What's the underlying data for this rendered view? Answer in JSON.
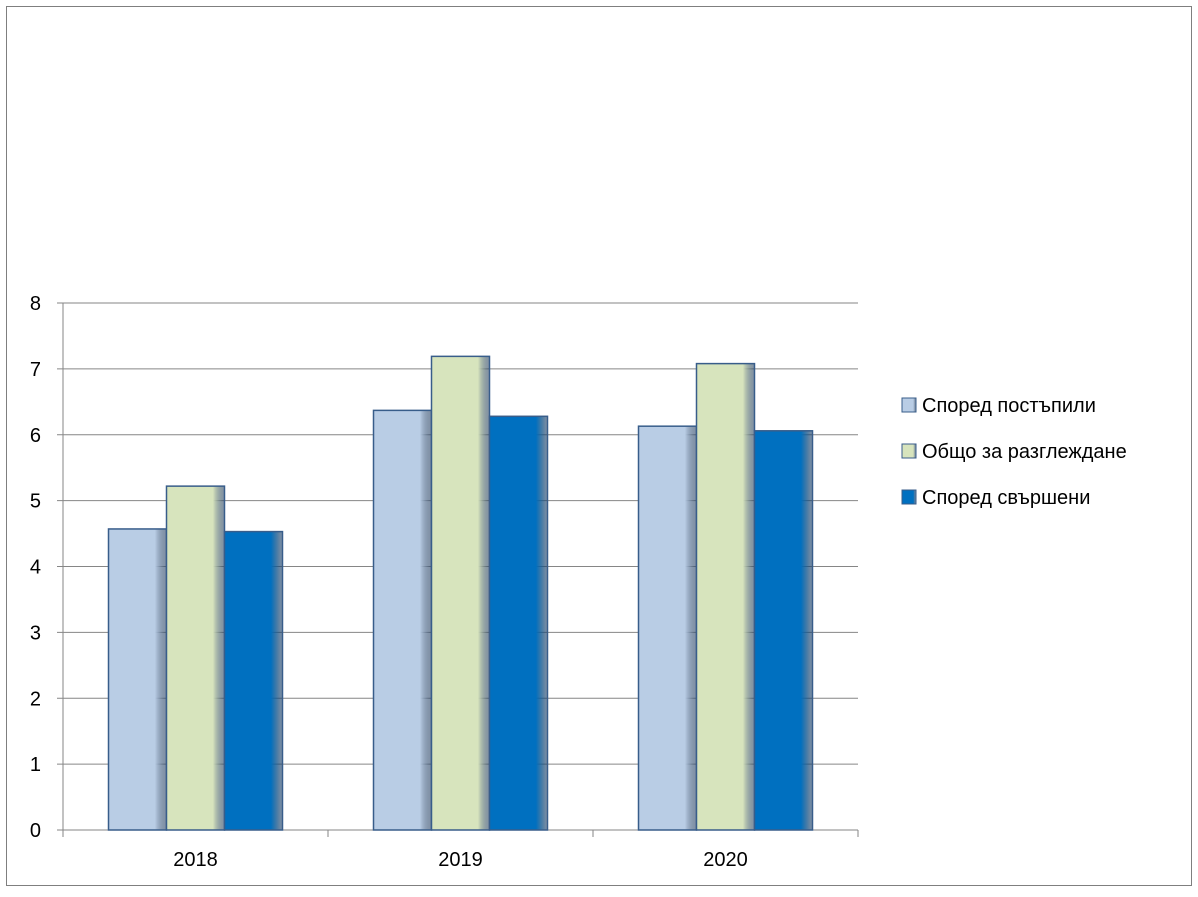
{
  "page": {
    "clipped_heading_fragment": ""
  },
  "chart_data": {
    "type": "bar",
    "categories": [
      "2018",
      "2019",
      "2020"
    ],
    "series": [
      {
        "name": "Според постъпили",
        "values": [
          4.57,
          6.37,
          6.13
        ],
        "color": "#b9cde5"
      },
      {
        "name": "Общо за разглеждане",
        "values": [
          5.22,
          7.19,
          7.08
        ],
        "color": "#d7e4bd"
      },
      {
        "name": "Според свършени",
        "values": [
          4.53,
          6.28,
          6.06
        ],
        "color": "#0070c0"
      }
    ],
    "title": "",
    "xlabel": "",
    "ylabel": "",
    "ylim": [
      0,
      8
    ],
    "yticks": [
      "0",
      "1",
      "2",
      "3",
      "4",
      "5",
      "6",
      "7",
      "8"
    ],
    "grid": true,
    "legend_position": "right",
    "outline_color": "#385d8a"
  }
}
